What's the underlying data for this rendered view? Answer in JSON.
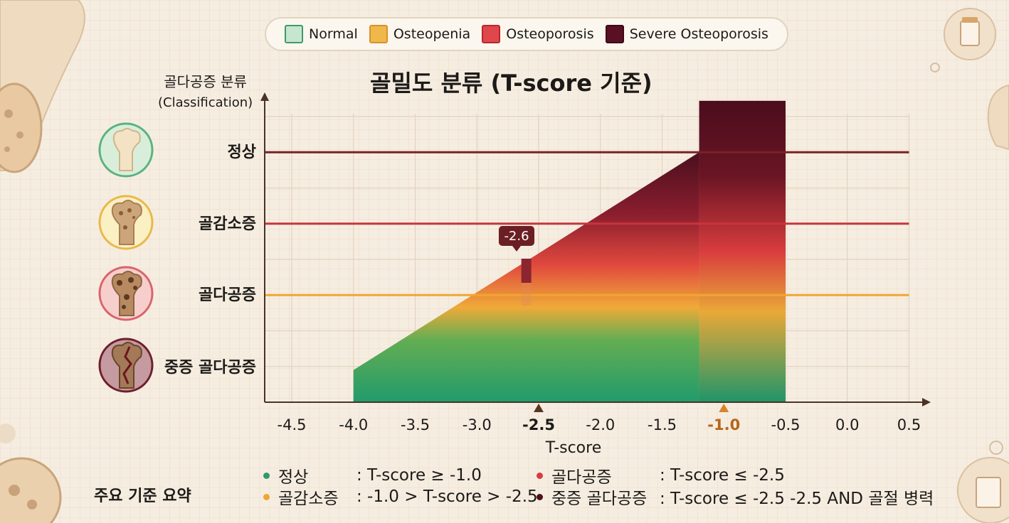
{
  "legend": [
    {
      "label": "Normal",
      "color": "#2e9a6b",
      "swatch": "#c7e6cf"
    },
    {
      "label": "Osteopenia",
      "color": "#f0a632",
      "swatch": "#f0b84a"
    },
    {
      "label": "Osteoporosis",
      "color": "#d83a3f",
      "swatch": "#e0474c"
    },
    {
      "label": "Severe Osteoporosis",
      "color": "#4e0f1e",
      "swatch": "#5a1024"
    }
  ],
  "y_axis_title": {
    "line1": "골다공증 분류",
    "line2": "(Classification)"
  },
  "categories": [
    {
      "label": "정상",
      "icon": "normal-bone-icon",
      "ring": "#5bb27f",
      "fill": "#d8eedb"
    },
    {
      "label": "골감소증",
      "icon": "osteopenia-bone-icon",
      "ring": "#e9b84a",
      "fill": "#fbefc4"
    },
    {
      "label": "골다공증",
      "icon": "osteoporosis-bone-icon",
      "ring": "#d9646a",
      "fill": "#f6cfcd"
    },
    {
      "label": "중증 골다공증",
      "icon": "severe-osteoporosis-bone-icon",
      "ring": "#6e1f2b",
      "fill": "#c59aa0"
    }
  ],
  "chart_data": {
    "type": "area",
    "title": "골밀도 분류 (T-score 기준)",
    "xlabel": "T-score",
    "ylabel": "골다공증 분류 (Classification)",
    "xlim": [
      -4.7,
      0.55
    ],
    "x_ticks": [
      "-4.5",
      "-4.0",
      "-3.5",
      "-3.0",
      "-2.5",
      "-2.0",
      "-1.5",
      "-1.0",
      "-0.5",
      "0.0",
      "0.5"
    ],
    "emphasized_ticks": [
      "-2.5",
      "-1.0"
    ],
    "y_categories": [
      "중증 골다공증",
      "골다공증",
      "골감소증",
      "정상"
    ],
    "area": {
      "x_start": -4.0,
      "x_end": -0.5,
      "y_start_level": 0.45,
      "ramp_end_x": -1.2,
      "y_end_level": 3.5,
      "block_x": [
        -1.2,
        -0.5
      ],
      "block_top_level": 4.22
    },
    "threshold_lines": [
      {
        "level": 1.5,
        "color": "#f0a632"
      },
      {
        "level": 2.5,
        "color": "#c8353c"
      },
      {
        "level": 3.5,
        "color": "#7a2226"
      }
    ],
    "highlight_point": {
      "x": -2.6,
      "label": "-2.6"
    },
    "gridlines": true
  },
  "summary": {
    "title": "주요 기준 요약",
    "items": [
      {
        "name": "정상",
        "rule": ": T-score ≥ -1.0",
        "color": "#2e9a6b"
      },
      {
        "name": "골감소증",
        "rule": ": -1.0 > T-score > -2.5",
        "color": "#f0a632"
      },
      {
        "name": "골다공증",
        "rule": ": T-score ≤ -2.5",
        "color": "#d83a3f"
      },
      {
        "name": "중증 골다공증",
        "rule": ": T-score ≤ -2.5 -2.5 AND 골절 병력",
        "color": "#4e0f1e"
      }
    ]
  }
}
